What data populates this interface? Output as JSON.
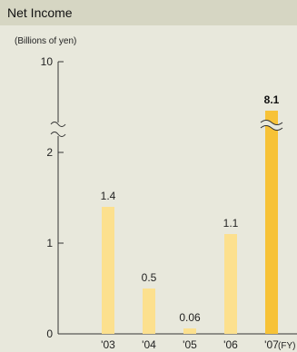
{
  "title": "Net Income",
  "colors": {
    "header": "#d6d6c3",
    "panel": "#e8e8dc",
    "bar_light": "#fce08e",
    "bar_highlight": "#f7c237",
    "axis": "#333333"
  },
  "chart_data": {
    "type": "bar",
    "unit_label": "(Billions of yen)",
    "categories": [
      "'03",
      "'04",
      "'05",
      "'06",
      "'07"
    ],
    "values": [
      1.4,
      0.5,
      0.06,
      1.1,
      8.1
    ],
    "value_labels": [
      "1.4",
      "0.5",
      "0.06",
      "1.1",
      "8.1"
    ],
    "highlight_index": 4,
    "x_suffix": "(FY)",
    "yticks": [
      "0",
      "1",
      "2",
      "10"
    ],
    "ylim": [
      0,
      10
    ],
    "axis_break": "between 2 and 10",
    "grid": false
  }
}
